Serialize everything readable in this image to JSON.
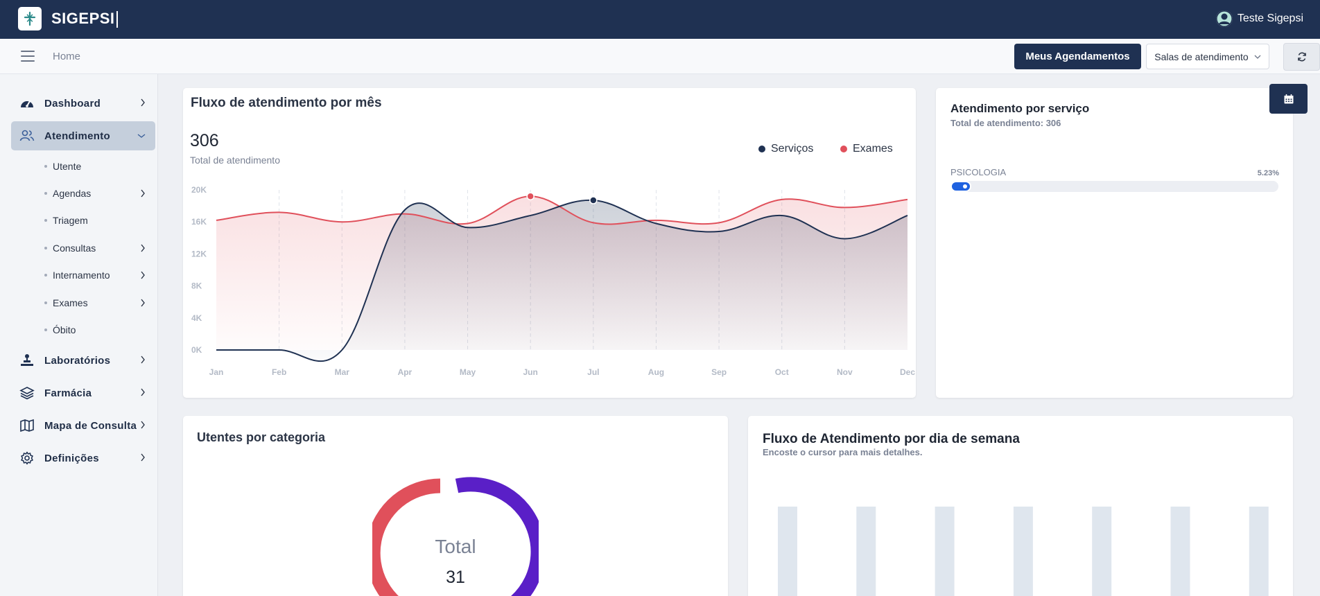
{
  "app": {
    "brand": "SIGEPSI",
    "user": "Teste Sigepsi"
  },
  "subbar": {
    "breadcrumb": "Home",
    "meus_agendamentos": "Meus Agendamentos",
    "salas": "Salas de atendimento"
  },
  "sidebar": {
    "items": [
      {
        "label": "Dashboard",
        "icon": "gauge-icon"
      },
      {
        "label": "Atendimento",
        "icon": "users-icon",
        "active": true
      },
      {
        "label": "Laboratórios",
        "icon": "lab-icon"
      },
      {
        "label": "Farmácia",
        "icon": "layers-icon"
      },
      {
        "label": "Mapa de Consulta",
        "icon": "map-icon"
      },
      {
        "label": "Definições",
        "icon": "gear-icon"
      }
    ],
    "subitems": [
      {
        "label": "Utente"
      },
      {
        "label": "Agendas"
      },
      {
        "label": "Triagem"
      },
      {
        "label": "Consultas"
      },
      {
        "label": "Internamento"
      },
      {
        "label": "Exames"
      },
      {
        "label": "Óbito"
      }
    ]
  },
  "fluxo_mes": {
    "title": "Fluxo de atendimento por mês",
    "total": "306",
    "total_label": "Total de atendimento",
    "legend": {
      "servicos": "Serviços",
      "exames": "Exames"
    },
    "colors": {
      "servicos": "#1f3152",
      "exames": "#e0505b"
    }
  },
  "chart_data": [
    {
      "type": "line",
      "title": "Fluxo de atendimento por mês",
      "categories": [
        "Jan",
        "Feb",
        "Mar",
        "Apr",
        "May",
        "Jun",
        "Jul",
        "Aug",
        "Sep",
        "Oct",
        "Nov",
        "Dec"
      ],
      "yticks": [
        "0K",
        "4K",
        "8K",
        "12K",
        "16K",
        "20K"
      ],
      "ylim": [
        0,
        20000
      ],
      "series": [
        {
          "name": "Serviços",
          "values": [
            0,
            0,
            0,
            17500,
            15300,
            16800,
            18700,
            15800,
            14800,
            16800,
            13900,
            16800
          ]
        },
        {
          "name": "Exames",
          "values": [
            16200,
            17200,
            16000,
            17000,
            15800,
            19200,
            15900,
            16200,
            15900,
            18800,
            17800,
            18800
          ]
        }
      ],
      "grid": true,
      "legend": "top-right"
    },
    {
      "type": "pie",
      "title": "Utentes por categoria",
      "center_label": "Total",
      "total": "31"
    },
    {
      "type": "bar",
      "title": "Fluxo de Atendimento por dia de semana"
    }
  ],
  "servico": {
    "title": "Atendimento por serviço",
    "subtitle": "Total de atendimento: 306",
    "rows": [
      {
        "label": "PSICOLOGIA",
        "percent": "5.23%",
        "fraction": 0.0523
      }
    ]
  },
  "categoria": {
    "title": "Utentes por categoria",
    "center_label": "Total",
    "total": "31"
  },
  "semana": {
    "title": "Fluxo de Atendimento por dia de semana",
    "subtitle": "Encoste o cursor para mais detalhes."
  }
}
